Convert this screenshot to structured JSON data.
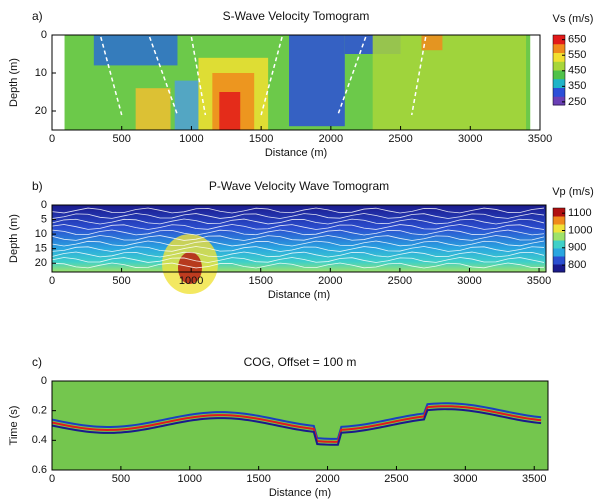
{
  "chart_data": [
    {
      "type": "heatmap",
      "panel": "a)",
      "title": "S-Wave Velocity Tomogram",
      "x_label": "Distance (m)",
      "y_label": "Depth (m)",
      "xlim": [
        0,
        3500
      ],
      "xticks": [
        0,
        500,
        1000,
        1500,
        2000,
        2500,
        3000,
        3500
      ],
      "ylim": [
        0,
        25
      ],
      "yticks": [
        0,
        10,
        20
      ],
      "y_inverted": true,
      "colorbar": {
        "label": "Vs (m/s)",
        "lim": [
          230,
          680
        ],
        "ticks": [
          250,
          350,
          450,
          550,
          650
        ],
        "colors": [
          "#6a3fb5",
          "#2c4fd8",
          "#1fb4c8",
          "#4fc24a",
          "#a8d63a",
          "#f2e030",
          "#f08a1c",
          "#e21a1a"
        ]
      }
    },
    {
      "type": "heatmap",
      "panel": "b)",
      "title": "P-Wave Velocity Wave Tomogram",
      "x_label": "Distance (m)",
      "y_label": "Depth (m)",
      "xlim": [
        0,
        3550
      ],
      "xticks": [
        0,
        500,
        1000,
        1500,
        2000,
        2500,
        3000,
        3500
      ],
      "ylim": [
        0,
        23
      ],
      "yticks": [
        0,
        5,
        10,
        15,
        20
      ],
      "y_inverted": true,
      "colorbar": {
        "label": "Vp (m/s)",
        "lim": [
          760,
          1130
        ],
        "ticks": [
          800,
          900,
          1000,
          1100
        ],
        "colors": [
          "#1a1a8c",
          "#2b4fd0",
          "#2aa6e0",
          "#3fd0c8",
          "#9ee26a",
          "#f0e23a",
          "#f08a1c",
          "#b01010"
        ]
      }
    },
    {
      "type": "heatmap",
      "panel": "c)",
      "title": "COG,  Offset = 100 m",
      "x_label": "Distance (m)",
      "y_label": "Time (s)",
      "xlim": [
        0,
        3600
      ],
      "xticks": [
        0,
        500,
        1000,
        1500,
        2000,
        2500,
        3000,
        3500
      ],
      "ylim": [
        0,
        0.6
      ],
      "yticks": [
        0,
        0.2,
        0.4,
        0.6
      ],
      "y_inverted": true
    }
  ]
}
